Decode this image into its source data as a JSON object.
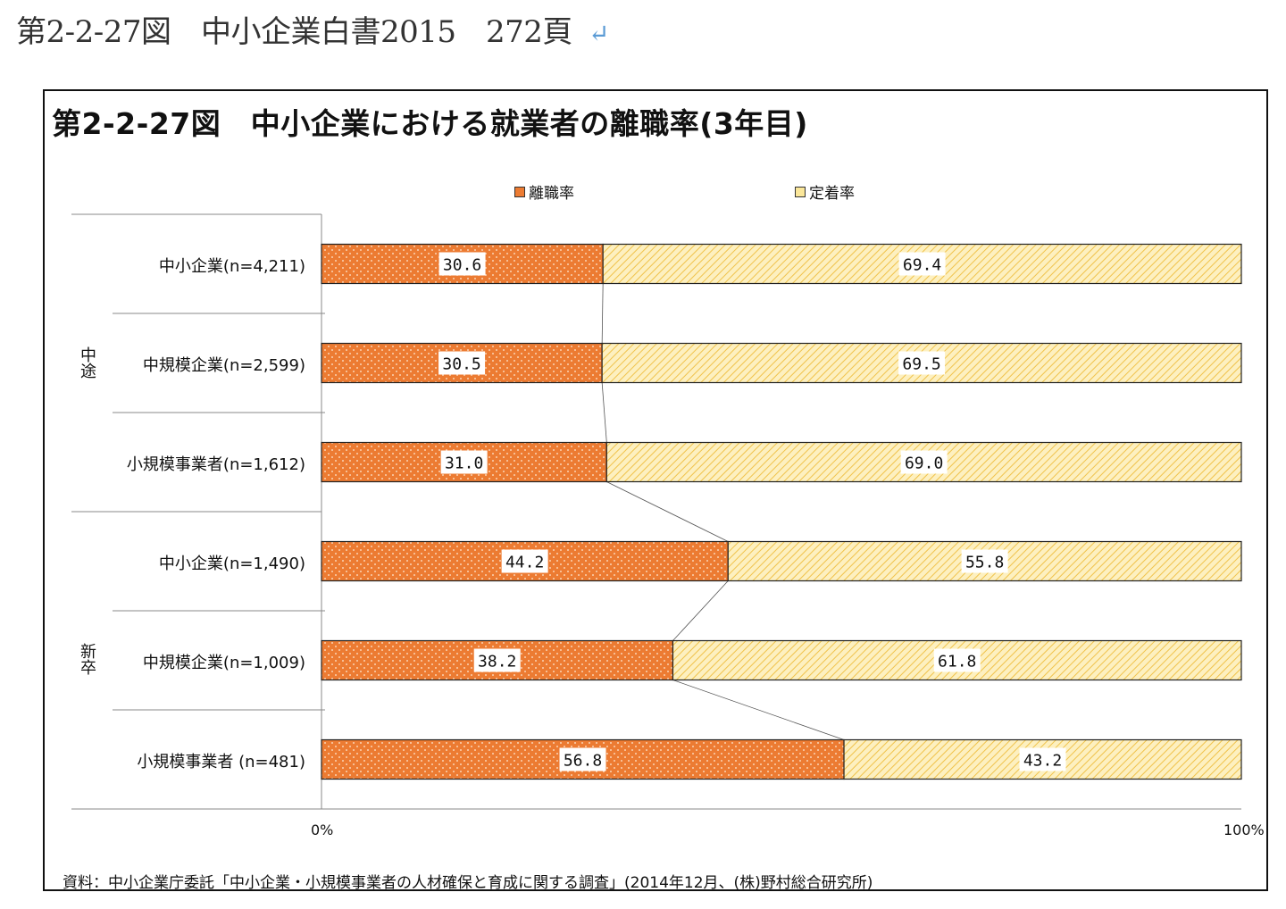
{
  "page": {
    "heading": "第2-2-27図　中小企業白書2015　272頁",
    "return_mark": "↵"
  },
  "chart_data": {
    "type": "bar",
    "orientation": "horizontal-stacked-100",
    "title": "第2-2-27図　中小企業における就業者の離職率(3年目)",
    "legend": [
      "離職率",
      "定着率"
    ],
    "groups": [
      "中途",
      "新卒"
    ],
    "categories": [
      "中小企業(n=4,211)",
      "中規模企業(n=2,599)",
      "小規模事業者(n=1,612)",
      "中小企業(n=1,490)",
      "中規模企業(n=1,009)",
      "小規模事業者 (n=481)"
    ],
    "category_groups": [
      "中途",
      "中途",
      "中途",
      "新卒",
      "新卒",
      "新卒"
    ],
    "series": [
      {
        "name": "離職率",
        "values": [
          30.6,
          30.5,
          31.0,
          44.2,
          38.2,
          56.8
        ],
        "labels": [
          "30.6",
          "30.5",
          "31.0",
          "44.2",
          "38.2",
          "56.8"
        ]
      },
      {
        "name": "定着率",
        "values": [
          69.4,
          69.5,
          69.0,
          55.8,
          61.8,
          43.2
        ],
        "labels": [
          "69.4",
          "69.5",
          "69.0",
          "55.8",
          "61.8",
          "43.2"
        ]
      }
    ],
    "xlim": [
      0,
      100
    ],
    "x_ticks": [
      "0%",
      "100%"
    ],
    "series_lines": true,
    "source": "資料：中小企業庁委託「中小企業・小規模事業者の人材確保と育成に関する調査」(2014年12月、(株)野村総合研究所)"
  },
  "colors": {
    "turnover": "#ec7b32",
    "retention": "#fbe79a",
    "retention_hatch": "#f0c24a",
    "frame": "#111111"
  }
}
